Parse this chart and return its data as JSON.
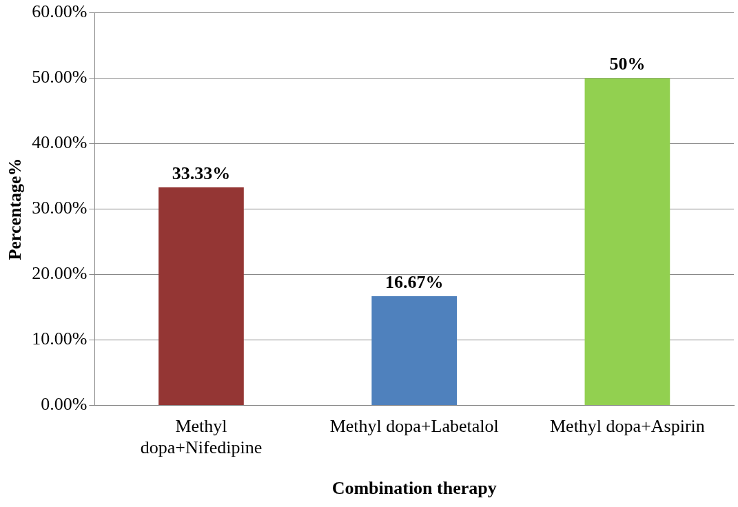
{
  "chart_data": {
    "type": "bar",
    "xlabel": "Combination therapy",
    "ylabel": "Percentage%",
    "categories": [
      "Methyl dopa+Nifedipine",
      "Methyl dopa+Labetalol",
      "Methyl dopa+Aspirin"
    ],
    "values": [
      33.33,
      16.67,
      50
    ],
    "colors": [
      "#943634",
      "#4f81bd",
      "#92d050"
    ],
    "value_labels": [
      "33.33%",
      "16.67%",
      "50%"
    ],
    "ylim": [
      0,
      60
    ],
    "yticks": [
      {
        "value": 0,
        "label": "0.00%"
      },
      {
        "value": 10,
        "label": "10.00%"
      },
      {
        "value": 20,
        "label": "20.00%"
      },
      {
        "value": 30,
        "label": "30.00%"
      },
      {
        "value": 40,
        "label": "40.00%"
      },
      {
        "value": 50,
        "label": "50.00%"
      },
      {
        "value": 60,
        "label": "60.00%"
      }
    ],
    "grid": "y",
    "legend": false
  }
}
